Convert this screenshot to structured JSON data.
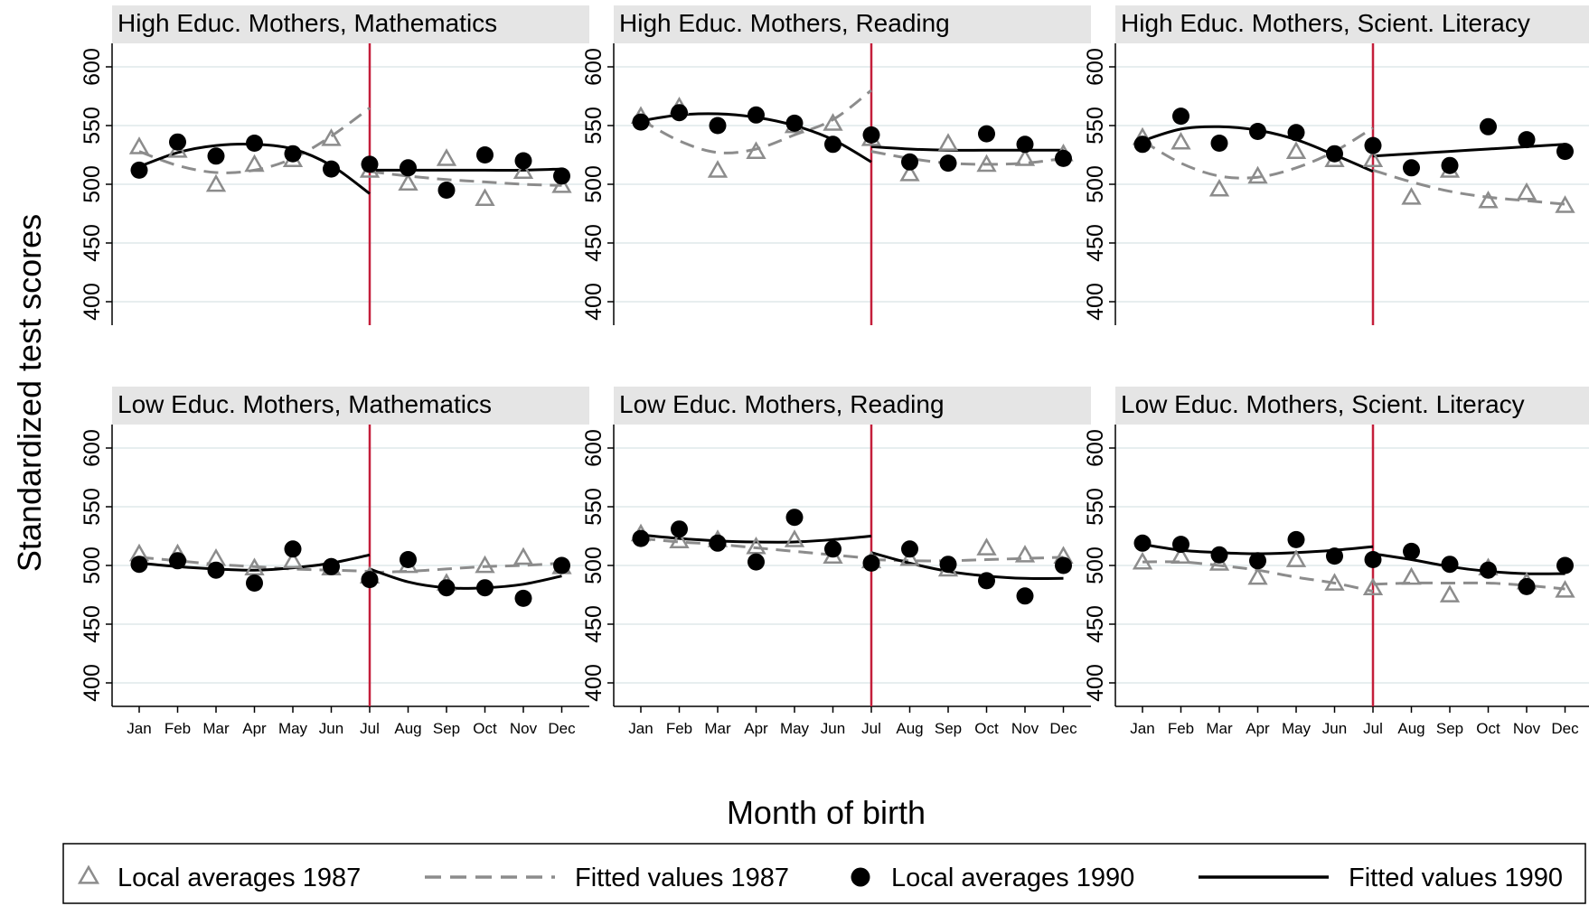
{
  "y_axis_title": "Standardized test scores",
  "x_axis_title": "Month of birth",
  "legend": {
    "items": [
      {
        "label": "Local averages 1987",
        "kind": "triangle",
        "color": "#8c8c8c"
      },
      {
        "label": "Fitted values 1987",
        "kind": "dash",
        "color": "#8c8c8c"
      },
      {
        "label": "Local averages 1990",
        "kind": "circle",
        "color": "#000000"
      },
      {
        "label": "Fitted values 1990",
        "kind": "solid",
        "color": "#000000"
      }
    ]
  },
  "colors": {
    "cutoff": "#c41e3a",
    "grid": "#dfe9ea",
    "panel_header": "#e5e5e5"
  },
  "chart_data": [
    {
      "type": "scatter",
      "title": "High Educ. Mothers, Mathematics",
      "categories": [
        "Jan",
        "Feb",
        "Mar",
        "Apr",
        "May",
        "Jun",
        "Jul",
        "Aug",
        "Sep",
        "Oct",
        "Nov",
        "Dec"
      ],
      "ylim": [
        380,
        620
      ],
      "yticks": [
        400,
        450,
        500,
        550,
        600
      ],
      "grid": true,
      "cutoff": "Jul",
      "series": [
        {
          "name": "Local averages 1987",
          "values": [
            531,
            528,
            499,
            516,
            520,
            538,
            511,
            500,
            521,
            487,
            510,
            498
          ]
        },
        {
          "name": "Fitted values 1987",
          "pre": [
            528,
            516,
            510,
            512,
            522,
            541,
            565
          ],
          "post": [
            511,
            507,
            504,
            502,
            500,
            499
          ]
        },
        {
          "name": "Local averages 1990",
          "values": [
            512,
            536,
            524,
            535,
            526,
            513,
            517,
            514,
            495,
            525,
            520,
            507
          ]
        },
        {
          "name": "Fitted values 1990",
          "pre": [
            515,
            527,
            533,
            534,
            530,
            516,
            492
          ],
          "post": [
            512,
            512,
            512,
            512,
            512,
            513
          ]
        }
      ]
    },
    {
      "type": "scatter",
      "title": "High Educ. Mothers, Reading",
      "categories": [
        "Jan",
        "Feb",
        "Mar",
        "Apr",
        "May",
        "Jun",
        "Jul",
        "Aug",
        "Sep",
        "Oct",
        "Nov",
        "Dec"
      ],
      "ylim": [
        380,
        620
      ],
      "yticks": [
        400,
        450,
        500,
        550,
        600
      ],
      "grid": true,
      "cutoff": "Jul",
      "series": [
        {
          "name": "Local averages 1987",
          "values": [
            557,
            565,
            511,
            527,
            549,
            551,
            538,
            508,
            534,
            516,
            521,
            525
          ]
        },
        {
          "name": "Fitted values 1987",
          "pre": [
            555,
            537,
            527,
            530,
            542,
            555,
            580
          ],
          "post": [
            528,
            522,
            518,
            517,
            518,
            522
          ]
        },
        {
          "name": "Local averages 1990",
          "values": [
            553,
            561,
            550,
            559,
            552,
            534,
            542,
            519,
            518,
            543,
            534,
            522
          ]
        },
        {
          "name": "Fitted values 1990",
          "pre": [
            554,
            559,
            560,
            557,
            550,
            538,
            519
          ],
          "post": [
            532,
            530,
            529,
            529,
            529,
            529
          ]
        }
      ]
    },
    {
      "type": "scatter",
      "title": "High Educ. Mothers, Scient. Literacy",
      "categories": [
        "Jan",
        "Feb",
        "Mar",
        "Apr",
        "May",
        "Jun",
        "Jul",
        "Aug",
        "Sep",
        "Oct",
        "Nov",
        "Dec"
      ],
      "ylim": [
        380,
        620
      ],
      "yticks": [
        400,
        450,
        500,
        550,
        600
      ],
      "grid": true,
      "cutoff": "Jul",
      "series": [
        {
          "name": "Local averages 1987",
          "values": [
            539,
            535,
            495,
            506,
            527,
            520,
            520,
            488,
            511,
            485,
            492,
            481
          ]
        },
        {
          "name": "Fitted values 1987",
          "pre": [
            537,
            518,
            507,
            506,
            514,
            528,
            548
          ],
          "post": [
            512,
            502,
            494,
            489,
            486,
            483
          ]
        },
        {
          "name": "Local averages 1990",
          "values": [
            534,
            558,
            535,
            545,
            544,
            526,
            533,
            514,
            516,
            549,
            538,
            528
          ]
        },
        {
          "name": "Fitted values 1990",
          "pre": [
            537,
            547,
            549,
            546,
            538,
            525,
            511
          ],
          "post": [
            524,
            526,
            528,
            530,
            532,
            534
          ]
        }
      ]
    },
    {
      "type": "scatter",
      "title": "Low Educ. Mothers, Mathematics",
      "categories": [
        "Jan",
        "Feb",
        "Mar",
        "Apr",
        "May",
        "Jun",
        "Jul",
        "Aug",
        "Sep",
        "Oct",
        "Nov",
        "Dec"
      ],
      "ylim": [
        380,
        620
      ],
      "yticks": [
        400,
        450,
        500,
        550,
        600
      ],
      "grid": true,
      "cutoff": "Jul",
      "series": [
        {
          "name": "Local averages 1987",
          "values": [
            509,
            509,
            505,
            497,
            503,
            497,
            490,
            499,
            484,
            499,
            506,
            498
          ]
        },
        {
          "name": "Fitted values 1987",
          "pre": [
            507,
            504,
            501,
            499,
            497,
            496,
            495
          ],
          "post": [
            494,
            495,
            497,
            499,
            500,
            502
          ]
        },
        {
          "name": "Local averages 1990",
          "values": [
            501,
            504,
            496,
            485,
            514,
            499,
            488,
            505,
            481,
            481,
            472,
            500
          ]
        },
        {
          "name": "Fitted values 1990",
          "pre": [
            502,
            499,
            497,
            496,
            498,
            502,
            509
          ],
          "post": [
            497,
            486,
            481,
            481,
            484,
            491
          ]
        }
      ]
    },
    {
      "type": "scatter",
      "title": "Low Educ. Mothers, Reading",
      "categories": [
        "Jan",
        "Feb",
        "Mar",
        "Apr",
        "May",
        "Jun",
        "Jul",
        "Aug",
        "Sep",
        "Oct",
        "Nov",
        "Dec"
      ],
      "ylim": [
        380,
        620
      ],
      "yticks": [
        400,
        450,
        500,
        550,
        600
      ],
      "grid": true,
      "cutoff": "Jul",
      "series": [
        {
          "name": "Local averages 1987",
          "values": [
            526,
            520,
            521,
            515,
            521,
            507,
            503,
            505,
            496,
            514,
            508,
            507
          ]
        },
        {
          "name": "Fitted values 1987",
          "pre": [
            523,
            520,
            518,
            515,
            512,
            509,
            506
          ],
          "post": [
            505,
            504,
            504,
            505,
            506,
            507
          ]
        },
        {
          "name": "Local averages 1990",
          "values": [
            523,
            531,
            519,
            503,
            541,
            514,
            502,
            514,
            501,
            487,
            474,
            500
          ]
        },
        {
          "name": "Fitted values 1990",
          "pre": [
            526,
            523,
            521,
            520,
            520,
            522,
            525
          ],
          "post": [
            511,
            502,
            495,
            491,
            489,
            489
          ]
        }
      ]
    },
    {
      "type": "scatter",
      "title": "Low Educ. Mothers, Scient. Literacy",
      "categories": [
        "Jan",
        "Feb",
        "Mar",
        "Apr",
        "May",
        "Jun",
        "Jul",
        "Aug",
        "Sep",
        "Oct",
        "Nov",
        "Dec"
      ],
      "ylim": [
        380,
        620
      ],
      "yticks": [
        400,
        450,
        500,
        550,
        600
      ],
      "grid": true,
      "cutoff": "Jul",
      "series": [
        {
          "name": "Local averages 1987",
          "values": [
            502,
            507,
            501,
            489,
            504,
            484,
            480,
            489,
            474,
            497,
            485,
            478
          ]
        },
        {
          "name": "Fitted values 1987",
          "pre": [
            503,
            503,
            500,
            496,
            490,
            485,
            478
          ],
          "post": [
            484,
            485,
            485,
            485,
            483,
            480
          ]
        },
        {
          "name": "Local averages 1990",
          "values": [
            519,
            518,
            509,
            504,
            522,
            508,
            505,
            512,
            501,
            496,
            482,
            500
          ]
        },
        {
          "name": "Fitted values 1990",
          "pre": [
            518,
            513,
            511,
            510,
            511,
            513,
            516
          ],
          "post": [
            510,
            505,
            499,
            495,
            493,
            493
          ]
        }
      ]
    }
  ]
}
